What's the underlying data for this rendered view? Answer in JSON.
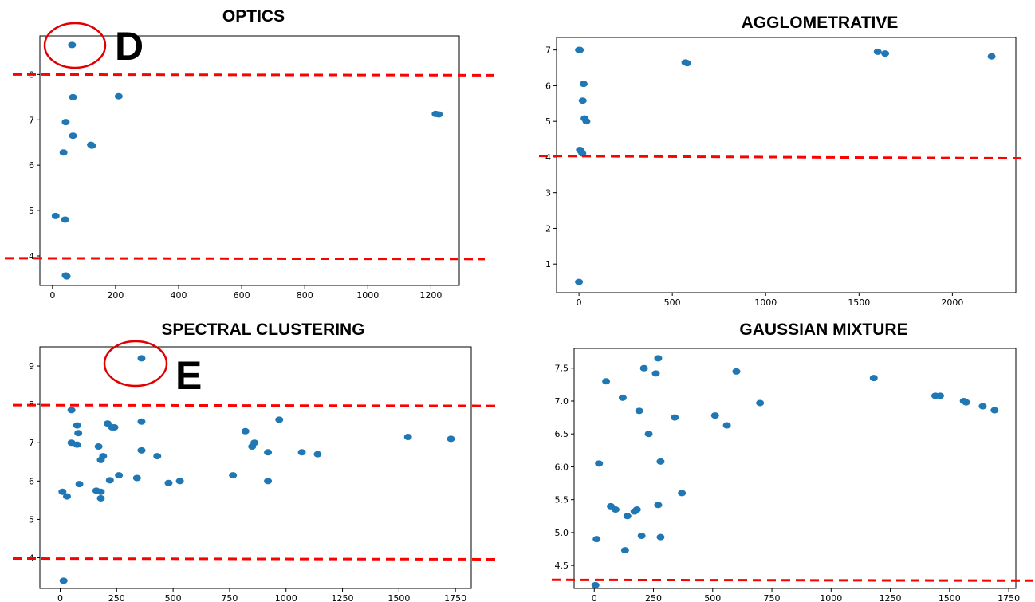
{
  "chart_data": [
    {
      "type": "scatter",
      "title": "OPTICS",
      "xlim": [
        -40,
        1290
      ],
      "ylim": [
        3.35,
        8.85
      ],
      "xticks": [
        0,
        200,
        400,
        600,
        800,
        1000,
        1200
      ],
      "yticks": [
        4,
        5,
        6,
        7,
        8
      ],
      "xticklabels": [
        "0",
        "200",
        "400",
        "600",
        "800",
        "1000",
        "1200"
      ],
      "yticklabels": [
        "4",
        "5",
        "6",
        "7",
        "8"
      ],
      "x": [
        62,
        65,
        210,
        1215,
        1225,
        42,
        65,
        122,
        125,
        35,
        10,
        40,
        45,
        42
      ],
      "y": [
        8.65,
        7.5,
        7.52,
        7.13,
        7.12,
        6.95,
        6.65,
        6.45,
        6.43,
        6.28,
        4.88,
        4.8,
        3.55,
        3.57
      ],
      "reference_lines": [
        8.0,
        3.95
      ],
      "highlight": {
        "label": "D",
        "x": 62,
        "y": 8.65
      },
      "color": "#1f77b4",
      "line_color": "#ff0000"
    },
    {
      "type": "scatter",
      "title": "AGGLOMETRATIVE",
      "xlim": [
        -120,
        2340
      ],
      "ylim": [
        0.2,
        7.35
      ],
      "xticks": [
        0,
        500,
        1000,
        1500,
        2000
      ],
      "yticks": [
        1,
        2,
        3,
        4,
        5,
        6,
        7
      ],
      "xticklabels": [
        "0",
        "500",
        "1000",
        "1500",
        "2000"
      ],
      "yticklabels": [
        "1",
        "2",
        "3",
        "4",
        "5",
        "6",
        "7"
      ],
      "x": [
        0,
        5,
        570,
        580,
        1600,
        1640,
        2210,
        25,
        20,
        30,
        40,
        5,
        10,
        18,
        0
      ],
      "y": [
        7.0,
        7.0,
        6.65,
        6.63,
        6.95,
        6.9,
        6.82,
        6.05,
        5.58,
        5.08,
        5.0,
        4.2,
        4.17,
        4.1,
        0.5
      ],
      "reference_lines": [
        4.03
      ],
      "color": "#1f77b4",
      "line_color": "#ff0000"
    },
    {
      "type": "scatter",
      "title": "SPECTRAL CLUSTERING",
      "xlim": [
        -90,
        1820
      ],
      "ylim": [
        3.2,
        9.5
      ],
      "xticks": [
        0,
        250,
        500,
        750,
        1000,
        1250,
        1500,
        1750
      ],
      "yticks": [
        4,
        5,
        6,
        7,
        8,
        9
      ],
      "xticklabels": [
        "0",
        "250",
        "500",
        "750",
        "1000",
        "1250",
        "1500",
        "1750"
      ],
      "yticklabels": [
        "4",
        "5",
        "6",
        "7",
        "8",
        "9"
      ],
      "x": [
        360,
        50,
        210,
        230,
        360,
        240,
        970,
        820,
        75,
        80,
        50,
        75,
        850,
        860,
        170,
        360,
        430,
        920,
        1070,
        1140,
        1540,
        1730,
        190,
        180,
        765,
        260,
        220,
        340,
        85,
        480,
        530,
        920,
        10,
        160,
        180,
        30,
        180,
        15
      ],
      "y": [
        9.2,
        7.85,
        7.5,
        7.4,
        7.55,
        7.4,
        7.6,
        7.3,
        7.45,
        7.25,
        7.0,
        6.95,
        6.9,
        7.0,
        6.9,
        6.8,
        6.65,
        6.75,
        6.75,
        6.7,
        7.15,
        7.1,
        6.65,
        6.55,
        6.15,
        6.15,
        6.02,
        6.08,
        5.92,
        5.95,
        6.0,
        6.0,
        5.72,
        5.75,
        5.72,
        5.6,
        5.55,
        3.4
      ],
      "reference_lines": [
        7.98,
        3.98
      ],
      "highlight": {
        "label": "E",
        "x": 360,
        "y": 9.2
      },
      "color": "#1f77b4",
      "line_color": "#ff0000"
    },
    {
      "type": "scatter",
      "title": "GAUSSIAN MIXTURE",
      "xlim": [
        -85,
        1780
      ],
      "ylim": [
        4.15,
        7.8
      ],
      "xticks": [
        0,
        250,
        500,
        750,
        1000,
        1250,
        1500,
        1750
      ],
      "yticks": [
        4.5,
        5.0,
        5.5,
        6.0,
        6.5,
        7.0,
        7.5
      ],
      "xticklabels": [
        "0",
        "250",
        "500",
        "750",
        "1000",
        "1250",
        "1500",
        "1750"
      ],
      "yticklabels": [
        "4.5",
        "5.0",
        "5.5",
        "6.0",
        "6.5",
        "7.0",
        "7.5"
      ],
      "x": [
        270,
        210,
        260,
        600,
        1180,
        50,
        120,
        1440,
        1460,
        1560,
        1570,
        1640,
        1690,
        190,
        700,
        510,
        560,
        340,
        230,
        20,
        280,
        370,
        70,
        90,
        170,
        180,
        140,
        270,
        10,
        200,
        280,
        130,
        5
      ],
      "y": [
        7.65,
        7.5,
        7.42,
        7.45,
        7.35,
        7.3,
        7.05,
        7.08,
        7.08,
        7.0,
        6.98,
        6.92,
        6.86,
        6.85,
        6.97,
        6.78,
        6.63,
        6.75,
        6.5,
        6.05,
        6.08,
        5.6,
        5.4,
        5.35,
        5.32,
        5.35,
        5.25,
        5.42,
        4.9,
        4.95,
        4.93,
        4.73,
        4.2
      ],
      "reference_lines": [
        4.28
      ],
      "color": "#1f77b4",
      "line_color": "#ff0000"
    }
  ]
}
